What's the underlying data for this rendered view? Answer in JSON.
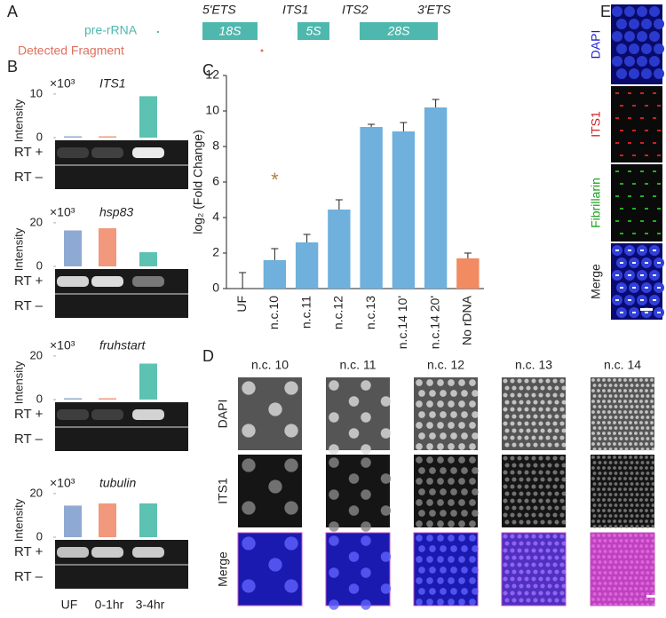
{
  "panel_a": {
    "label": "A",
    "regions": [
      "5'ETS",
      "ITS1",
      "ITS2",
      "3'ETS"
    ],
    "boxes": [
      "18S",
      "5S",
      "28S"
    ],
    "legend": [
      "pre-rRNA",
      "Detected Fragment"
    ]
  },
  "panel_b": {
    "label": "B",
    "scale": "×10³",
    "y_label": "Intensity",
    "gel_rows": [
      "RT +",
      "RT –"
    ],
    "categories": [
      "UF",
      "0-1hr",
      "3-4hr"
    ],
    "colors": [
      "#8faad2",
      "#f2987c",
      "#5cc2b2"
    ]
  },
  "chart_data": [
    {
      "type": "bar",
      "title": "ITS1",
      "values": [
        0,
        0.3,
        9.5
      ],
      "ylim": [
        0,
        11
      ],
      "yticks": [
        0,
        10
      ]
    },
    {
      "type": "bar",
      "title": "hsp83",
      "values": [
        16.5,
        17.5,
        6.5
      ],
      "ylim": [
        0,
        22
      ],
      "yticks": [
        0,
        20
      ]
    },
    {
      "type": "bar",
      "title": "fruhstart",
      "values": [
        0.3,
        0.3,
        16.5
      ],
      "ylim": [
        0,
        22
      ],
      "yticks": [
        0,
        20
      ]
    },
    {
      "type": "bar",
      "title": "tubulin",
      "values": [
        14.5,
        15.5,
        15.5
      ],
      "ylim": [
        0,
        22
      ],
      "yticks": [
        0,
        20
      ]
    },
    {
      "type": "errorbar",
      "label": "C",
      "y_label": "log₂ (Fold Change)",
      "categories": [
        "UF",
        "n.c.10",
        "n.c.11",
        "n.c.12",
        "n.c.13",
        "n.c.14 10'",
        "n.c.14 20'",
        "No rDNA"
      ],
      "values": [
        0,
        1.6,
        2.6,
        4.45,
        9.1,
        8.85,
        10.2,
        1.7
      ],
      "errors": [
        0.9,
        0.65,
        0.45,
        0.55,
        0.15,
        0.5,
        0.45,
        0.3
      ],
      "colors": [
        "#6fb0dc",
        "#6fb0dc",
        "#6fb0dc",
        "#6fb0dc",
        "#6fb0dc",
        "#6fb0dc",
        "#6fb0dc",
        "#f28a62"
      ],
      "annotation": "*",
      "ylim": [
        0,
        12
      ],
      "yticks": [
        0,
        2,
        4,
        6,
        8,
        10,
        12
      ]
    }
  ],
  "panel_d": {
    "label": "D",
    "columns": [
      "n.c. 10",
      "n.c. 11",
      "n.c. 12",
      "n.c. 13",
      "n.c. 14"
    ],
    "rows": [
      "DAPI",
      "ITS1",
      "Merge"
    ]
  },
  "panel_e": {
    "label": "E",
    "rows": [
      "DAPI",
      "ITS1",
      "Fibrillarin",
      "Merge"
    ]
  }
}
